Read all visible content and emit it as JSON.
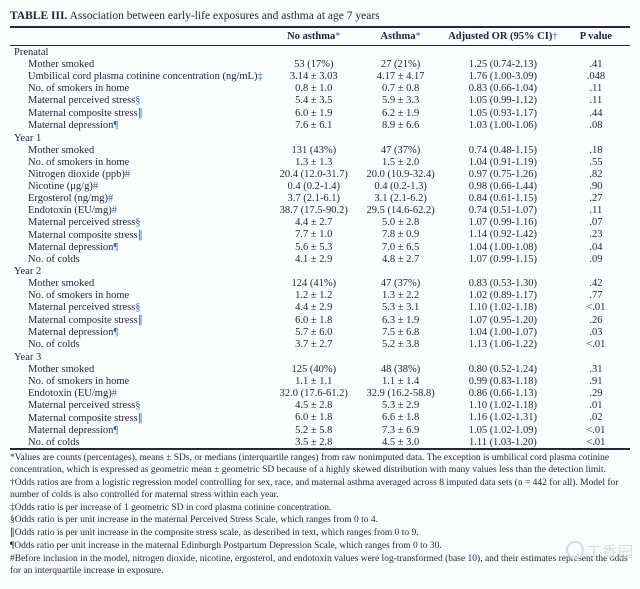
{
  "title_prefix": "TABLE III.",
  "title_text": "Association between early-life exposures and asthma at age 7 years",
  "columns": [
    {
      "label": "",
      "marker": ""
    },
    {
      "label": "No asthma",
      "marker": "*"
    },
    {
      "label": "Asthma",
      "marker": "*"
    },
    {
      "label": "Adjusted OR (95% CI)",
      "marker": "†"
    },
    {
      "label": "P value",
      "marker": ""
    }
  ],
  "marker_color": "#2768c4",
  "col_widths": [
    "42%",
    "14%",
    "14%",
    "19%",
    "11%"
  ],
  "sections": [
    {
      "heading": "Prenatal",
      "rows": [
        {
          "label": "Mother smoked",
          "m": "",
          "c": [
            "53 (17%)",
            "27 (21%)",
            "1.25 (0.74-2.13)",
            ".41"
          ]
        },
        {
          "label": "Umbilical cord plasma cotinine concentration (ng/mL)",
          "m": "‡",
          "c": [
            "3.14 ± 3.03",
            "4.17 ± 4.17",
            "1.76 (1.00-3.09)",
            ".048"
          ]
        },
        {
          "label": "No. of smokers in home",
          "m": "",
          "c": [
            "0.8 ± 1.0",
            "0.7 ± 0.8",
            "0.83 (0.66-1.04)",
            ".11"
          ]
        },
        {
          "label": "Maternal perceived stress",
          "m": "§",
          "c": [
            "5.4 ± 3.5",
            "5.9 ± 3.3",
            "1.05 (0.99-1.12)",
            ".11"
          ]
        },
        {
          "label": "Maternal composite stress",
          "m": "∥",
          "c": [
            "6.0 ± 1.9",
            "6.2 ± 1.9",
            "1.05 (0.93-1.17)",
            ".44"
          ]
        },
        {
          "label": "Maternal depression",
          "m": "¶",
          "c": [
            "7.6 ± 6.1",
            "8.9 ± 6.6",
            "1.03 (1.00-1.06)",
            ".08"
          ]
        }
      ]
    },
    {
      "heading": "Year 1",
      "rows": [
        {
          "label": "Mother smoked",
          "m": "",
          "c": [
            "131 (43%)",
            "47 (37%)",
            "0.74 (0.48-1.15)",
            ".18"
          ]
        },
        {
          "label": "No. of smokers in home",
          "m": "",
          "c": [
            "1.3 ± 1.3",
            "1.5 ± 2.0",
            "1.04 (0.91-1.19)",
            ".55"
          ]
        },
        {
          "label": "Nitrogen dioxide (ppb)",
          "m": "#",
          "c": [
            "20.4 (12.0-31.7)",
            "20.0 (10.9-32.4)",
            "0.97 (0.75-1.26)",
            ".82"
          ]
        },
        {
          "label": "Nicotine (μg/g)",
          "m": "#",
          "c": [
            "0.4 (0.2-1.4)",
            "0.4 (0.2-1.3)",
            "0.98 (0.66-1.44)",
            ".90"
          ]
        },
        {
          "label": "Ergosterol (ng/mg)",
          "m": "#",
          "c": [
            "3.7 (2.1-6.1)",
            "3.1 (2.1-6.2)",
            "0.84 (0.61-1.15)",
            ".27"
          ]
        },
        {
          "label": "Endotoxin (EU/mg)",
          "m": "#",
          "c": [
            "38.7 (17.5-90.2)",
            "29.5 (14.6-62.2)",
            "0.74 (0.51-1.07)",
            ".11"
          ]
        },
        {
          "label": "Maternal perceived stress",
          "m": "§",
          "c": [
            "4.4 ± 2.7",
            "5.0 ± 2.8",
            "1.07 (0.99-1.16)",
            ".07"
          ]
        },
        {
          "label": "Maternal composite stress",
          "m": "∥",
          "c": [
            "7.7 ± 1.0",
            "7.8 ± 0.9",
            "1.14 (0.92-1.42)",
            ".23"
          ]
        },
        {
          "label": "Maternal depression",
          "m": "¶",
          "c": [
            "5.6 ± 5.3",
            "7.0 ± 6.5",
            "1.04 (1.00-1.08)",
            ".04"
          ]
        },
        {
          "label": "No. of colds",
          "m": "",
          "c": [
            "4.1 ± 2.9",
            "4.8 ± 2.7",
            "1.07 (0.99-1.15)",
            ".09"
          ]
        }
      ]
    },
    {
      "heading": "Year 2",
      "rows": [
        {
          "label": "Mother smoked",
          "m": "",
          "c": [
            "124 (41%)",
            "47 (37%)",
            "0.83 (0.53-1.30)",
            ".42"
          ]
        },
        {
          "label": "No. of smokers in home",
          "m": "",
          "c": [
            "1.2 ± 1.2",
            "1.3 ± 2.2",
            "1.02 (0.89-1.17)",
            ".77"
          ]
        },
        {
          "label": "Maternal perceived stress",
          "m": "§",
          "c": [
            "4.4 ± 2.9",
            "5.3 ± 3.1",
            "1.10 (1.02-1.18)",
            "<.01"
          ]
        },
        {
          "label": "Maternal composite stress",
          "m": "∥",
          "c": [
            "6.0 ± 1.8",
            "6.3 ± 1.9",
            "1.07 (0.95-1.20)",
            ".26"
          ]
        },
        {
          "label": "Maternal depression",
          "m": "¶",
          "c": [
            "5.7 ± 6.0",
            "7.5 ± 6.8",
            "1.04 (1.00-1.07)",
            ".03"
          ]
        },
        {
          "label": "No. of colds",
          "m": "",
          "c": [
            "3.7 ± 2.7",
            "5.2 ± 3.8",
            "1.13 (1.06-1.22)",
            "<.01"
          ]
        }
      ]
    },
    {
      "heading": "Year 3",
      "rows": [
        {
          "label": "Mother smoked",
          "m": "",
          "c": [
            "125 (40%)",
            "48 (38%)",
            "0.80 (0.52-1.24)",
            ".31"
          ]
        },
        {
          "label": "No. of smokers in home",
          "m": "",
          "c": [
            "1.1 ± 1.1",
            "1.1 ± 1.4",
            "0.99 (0.83-1.18)",
            ".91"
          ]
        },
        {
          "label": "Endotoxin (EU/mg)",
          "m": "#",
          "c": [
            "32.0 (17.6-61.2)",
            "32.9 (16.2-58.8)",
            "0.86 (0.66-1.13)",
            ".29"
          ]
        },
        {
          "label": "Maternal perceived stress",
          "m": "§",
          "c": [
            "4.5 ± 2.8",
            "5.3 ± 2.9",
            "1.10 (1.02-1.18)",
            ".01"
          ]
        },
        {
          "label": "Maternal composite stress",
          "m": "∥",
          "c": [
            "6.0 ± 1.8",
            "6.6 ± 1.8",
            "1.16 (1.02-1.31)",
            ".02"
          ]
        },
        {
          "label": "Maternal depression",
          "m": "¶",
          "c": [
            "5.2 ± 5.8",
            "7.3 ± 6.9",
            "1.05 (1.02-1.09)",
            "<.01"
          ]
        },
        {
          "label": "No. of colds",
          "m": "",
          "c": [
            "3.5 ± 2.8",
            "4.5 ± 3.0",
            "1.11 (1.03-1.20)",
            "<.01"
          ]
        }
      ]
    }
  ],
  "footnotes": [
    {
      "m": "*",
      "t": "Values are counts (percentages), means ± SDs, or medians (interquartile ranges) from raw nonimputed data. The exception is umbilical cord plasma cotinine concentration, which is expressed as geometric mean ± geometric SD because of a highly skewed distribution with many values less than the detection limit."
    },
    {
      "m": "†",
      "t": "Odds ratios are from a logistic regression model controlling for sex, race, and maternal asthma averaged across 8 imputed data sets (n = 442 for all). Model for number of colds is also controlled for maternal stress within each year."
    },
    {
      "m": "‡",
      "t": "Odds ratio is per increase of 1 geometric SD in cord plasma cotinine concentration."
    },
    {
      "m": "§",
      "t": "Odds ratio is per unit increase in the maternal Perceived Stress Scale, which ranges from 0 to 4."
    },
    {
      "m": "∥",
      "t": "Odds ratio is per unit increase in the composite stress scale, as described in text, which ranges from 0 to 9."
    },
    {
      "m": "¶",
      "t": "Odds ratio per unit increase in the maternal Edinburgh Postpartum Depression Scale, which ranges from 0 to 30."
    },
    {
      "m": "#",
      "t": "Before inclusion in the model, nitrogen dioxide, nicotine, ergosterol, and endotoxin values were log-transformed (base 10), and their estimates represent the odds for an interquartile increase in exposure."
    }
  ],
  "watermark": "丁香园"
}
